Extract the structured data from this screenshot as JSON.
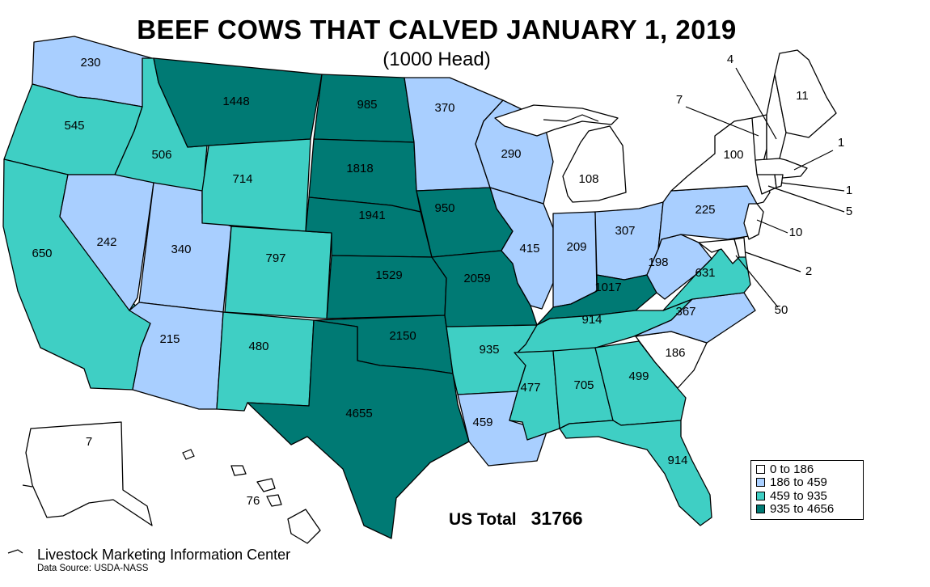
{
  "title": "BEEF COWS THAT CALVED JANUARY 1, 2019",
  "subtitle": "(1000 Head)",
  "total": {
    "label": "US Total",
    "value": "31766"
  },
  "source": {
    "org": "Livestock Marketing Information Center",
    "data": "Data Source: USDA-NASS"
  },
  "colors": {
    "c1": "#ffffff",
    "c2": "#a9cfff",
    "c3": "#3fcfc4",
    "c4": "#007a74",
    "border": "#000000"
  },
  "legend": [
    {
      "label": "0 to 186",
      "color_key": "c1"
    },
    {
      "label": "186 to 459",
      "color_key": "c2"
    },
    {
      "label": "459 to 935",
      "color_key": "c3"
    },
    {
      "label": "935 to 4656",
      "color_key": "c4"
    }
  ],
  "chart_data": {
    "type": "choropleth",
    "unit": "1000 Head",
    "states": [
      {
        "state": "WA",
        "value": 230
      },
      {
        "state": "OR",
        "value": 545
      },
      {
        "state": "CA",
        "value": 650
      },
      {
        "state": "ID",
        "value": 506
      },
      {
        "state": "NV",
        "value": 242
      },
      {
        "state": "UT",
        "value": 340
      },
      {
        "state": "AZ",
        "value": 215
      },
      {
        "state": "MT",
        "value": 1448
      },
      {
        "state": "WY",
        "value": 714
      },
      {
        "state": "CO",
        "value": 797
      },
      {
        "state": "NM",
        "value": 480
      },
      {
        "state": "ND",
        "value": 985
      },
      {
        "state": "SD",
        "value": 1818
      },
      {
        "state": "NE",
        "value": 1941
      },
      {
        "state": "KS",
        "value": 1529
      },
      {
        "state": "OK",
        "value": 2150
      },
      {
        "state": "TX",
        "value": 4655
      },
      {
        "state": "MN",
        "value": 370
      },
      {
        "state": "IA",
        "value": 950
      },
      {
        "state": "MO",
        "value": 2059
      },
      {
        "state": "AR",
        "value": 935
      },
      {
        "state": "LA",
        "value": 459
      },
      {
        "state": "WI",
        "value": 290
      },
      {
        "state": "IL",
        "value": 415
      },
      {
        "state": "MI",
        "value": 108
      },
      {
        "state": "IN",
        "value": 209
      },
      {
        "state": "OH",
        "value": 307
      },
      {
        "state": "KY",
        "value": 1017
      },
      {
        "state": "TN",
        "value": 914
      },
      {
        "state": "MS",
        "value": 477
      },
      {
        "state": "AL",
        "value": 705
      },
      {
        "state": "GA",
        "value": 499
      },
      {
        "state": "FL",
        "value": 914
      },
      {
        "state": "SC",
        "value": 186
      },
      {
        "state": "NC",
        "value": 367
      },
      {
        "state": "VA",
        "value": 631
      },
      {
        "state": "WV",
        "value": 198
      },
      {
        "state": "PA",
        "value": 225
      },
      {
        "state": "NY",
        "value": 100
      },
      {
        "state": "ME",
        "value": 11
      },
      {
        "state": "NH",
        "value": 4
      },
      {
        "state": "VT",
        "value": 7
      },
      {
        "state": "MA",
        "value": 1
      },
      {
        "state": "CT",
        "value": 5
      },
      {
        "state": "RI",
        "value": 1
      },
      {
        "state": "NJ",
        "value": 10
      },
      {
        "state": "DE",
        "value": 2
      },
      {
        "state": "MD",
        "value": 50
      },
      {
        "state": "AK",
        "value": 7
      },
      {
        "state": "HI",
        "value": 76
      }
    ]
  }
}
